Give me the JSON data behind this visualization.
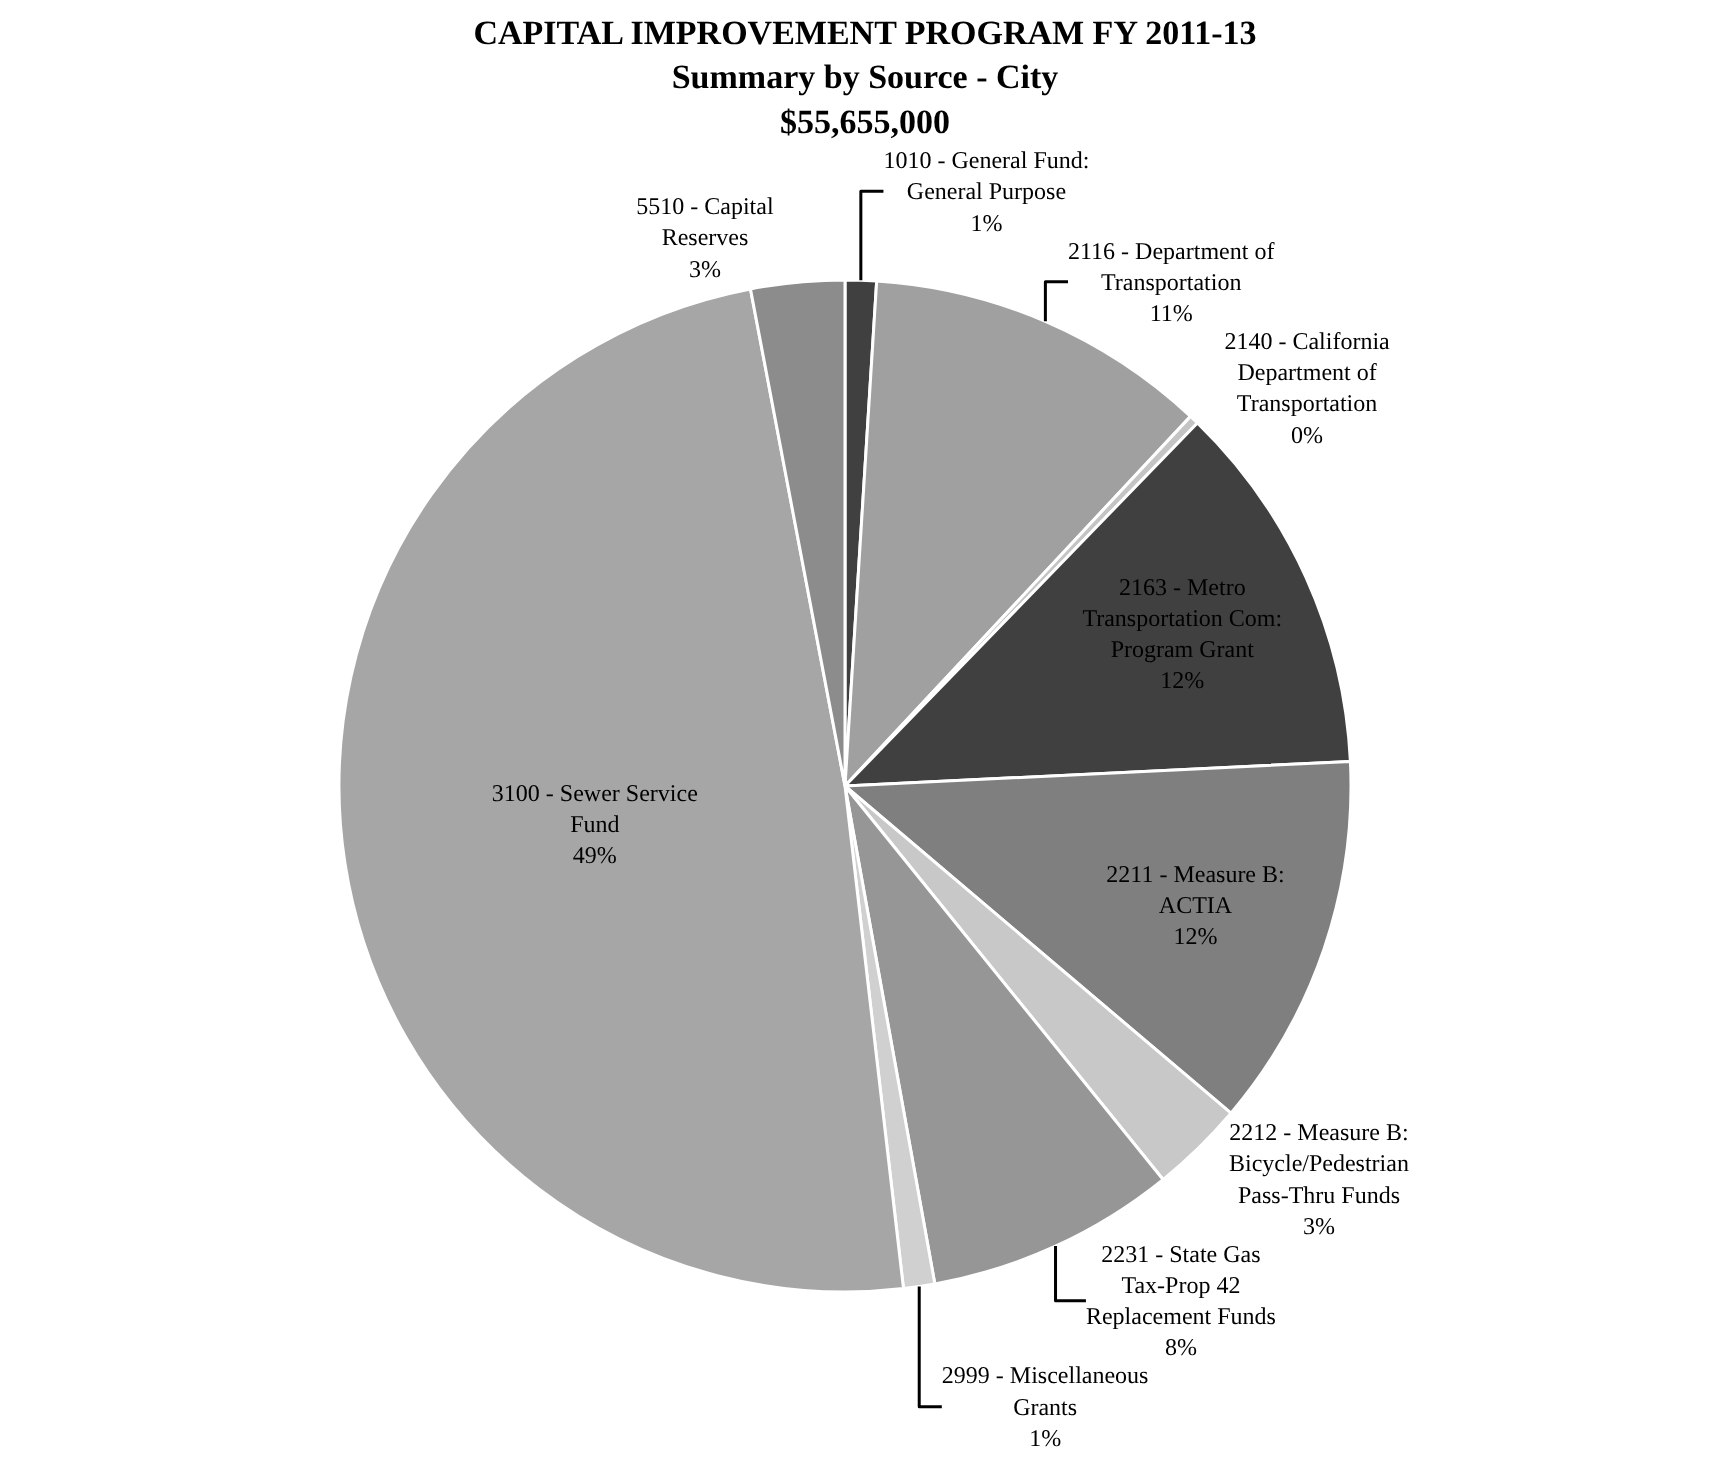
{
  "chart_data": {
    "type": "pie",
    "title": "CAPITAL IMPROVEMENT PROGRAM FY 2011-13\nSummary by Source - City\n$55,655,000",
    "categories": [
      "1010 - General Fund: General Purpose",
      "2116 - Department of Transportation",
      "2140 - California Department of Transportation",
      "2163 - Metro Transportation Com: Program Grant",
      "2211 - Measure B: ACTIA",
      "2212 - Measure B: Bicycle/Pedestrian Pass-Thru Funds",
      "2231 - State Gas Tax-Prop 42 Replacement Funds",
      "2999 - Miscellaneous Grants",
      "3100 - Sewer Service Fund",
      "5510 - Capital Reserves"
    ],
    "values": [
      1,
      11,
      0.3,
      12,
      12,
      3,
      8,
      1,
      49,
      3
    ],
    "value_labels": [
      "1%",
      "11%",
      "0%",
      "12%",
      "12%",
      "3%",
      "8%",
      "1%",
      "49%",
      "3%"
    ],
    "colors": [
      "#404040",
      "#a0a0a0",
      "#c4c4c4",
      "#404040",
      "#7f7f7f",
      "#c8c8c8",
      "#969696",
      "#d0d0d0",
      "#a6a6a6",
      "#8c8c8c"
    ],
    "legend": false
  }
}
